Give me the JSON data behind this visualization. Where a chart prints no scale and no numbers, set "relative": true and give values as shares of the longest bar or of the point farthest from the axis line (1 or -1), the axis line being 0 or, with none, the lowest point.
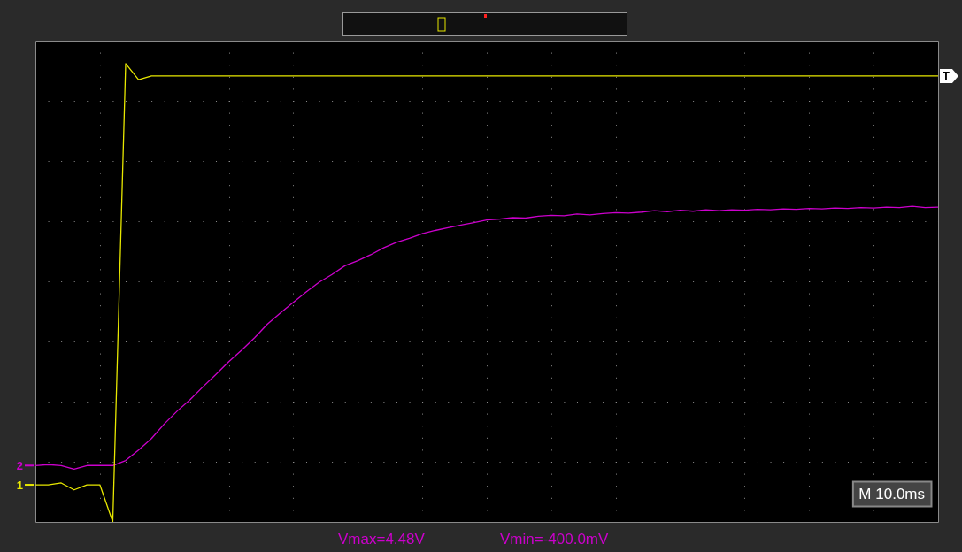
{
  "chart_data": {
    "type": "line",
    "relative": true,
    "grid": true,
    "legend": "left",
    "marker": "none",
    "line_style": "solid",
    "categories": [
      null,
      null,
      null,
      null,
      null,
      null,
      null,
      null,
      null,
      null,
      null,
      null,
      null,
      null,
      null,
      null,
      null,
      null,
      null,
      null,
      null,
      null,
      null,
      null,
      null,
      null,
      null,
      null,
      null,
      null,
      null,
      null,
      null,
      null,
      null,
      null,
      null,
      null,
      null,
      null,
      null,
      null,
      null,
      null,
      null,
      null,
      null,
      null,
      null,
      null,
      null,
      null,
      null,
      null,
      null,
      null,
      null,
      null,
      null,
      null,
      null,
      null,
      null,
      null,
      null,
      null,
      null,
      null,
      null,
      null,
      null
    ],
    "series": [
      {
        "name": "1",
        "color": "#e8e800",
        "values": [
          0.081,
          0.081,
          0.085,
          0.07,
          0.081,
          0.081,
          0,
          1,
          0.965,
          0.973,
          0.973,
          0.973,
          0.973,
          0.973,
          0.973,
          0.973,
          0.973,
          0.973,
          0.973,
          0.973,
          0.973,
          0.973,
          0.973,
          0.973,
          0.973,
          0.973,
          0.973,
          0.973,
          0.973,
          0.973,
          0.973,
          0.973,
          0.973,
          0.973,
          0.973,
          0.973,
          0.973,
          0.973,
          0.973,
          0.973,
          0.973,
          0.973,
          0.973,
          0.973,
          0.973,
          0.973,
          0.973,
          0.973,
          0.973,
          0.973,
          0.973,
          0.973,
          0.973,
          0.973,
          0.973,
          0.973,
          0.973,
          0.973,
          0.973,
          0.973,
          0.973,
          0.973,
          0.973,
          0.973,
          0.973,
          0.973,
          0.973,
          0.973,
          0.973,
          0.973,
          0.973
        ]
      },
      {
        "name": "2",
        "color": "#cc00cc",
        "values": [
          0.123,
          0.125,
          0.123,
          0.115,
          0.123,
          0.123,
          0.123,
          0.134,
          0.157,
          0.182,
          0.214,
          0.242,
          0.267,
          0.295,
          0.322,
          0.35,
          0.375,
          0.402,
          0.432,
          0.456,
          0.479,
          0.502,
          0.523,
          0.54,
          0.559,
          0.57,
          0.583,
          0.598,
          0.61,
          0.619,
          0.629,
          0.636,
          0.642,
          0.648,
          0.653,
          0.659,
          0.661,
          0.664,
          0.663,
          0.667,
          0.669,
          0.668,
          0.672,
          0.67,
          0.673,
          0.675,
          0.674,
          0.676,
          0.679,
          0.677,
          0.68,
          0.678,
          0.681,
          0.679,
          0.681,
          0.68,
          0.682,
          0.681,
          0.683,
          0.682,
          0.684,
          0.683,
          0.685,
          0.684,
          0.686,
          0.685,
          0.687,
          0.686,
          0.689,
          0.686,
          0.687
        ]
      }
    ],
    "annotations": [
      "T",
      "M 10.0ms",
      "Vmax=4.48V",
      "Vmin=-400.0mV"
    ]
  }
}
